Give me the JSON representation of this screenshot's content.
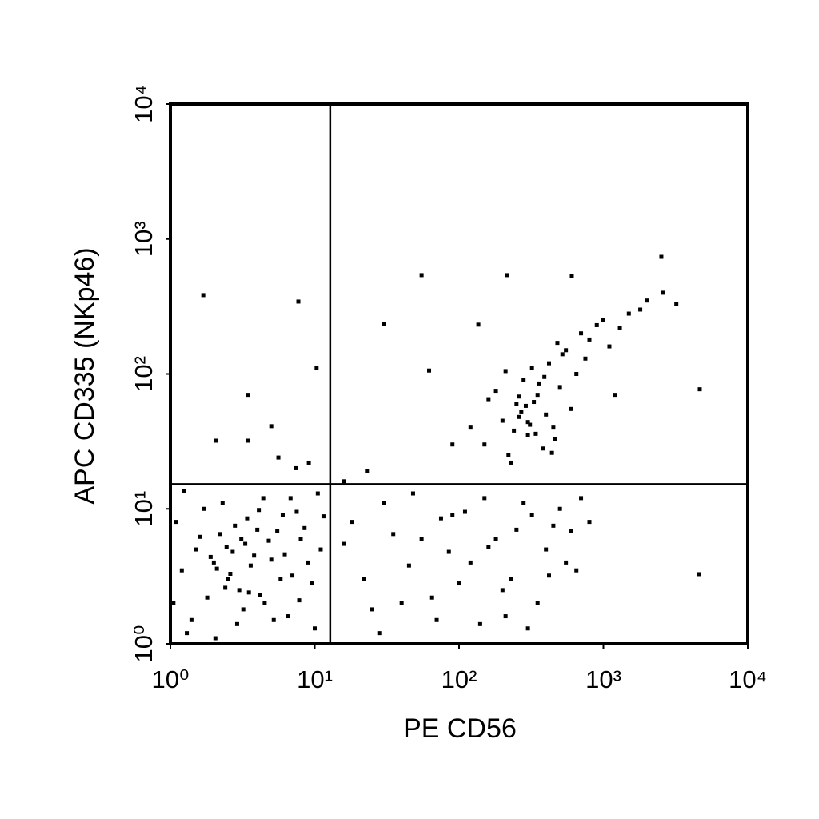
{
  "chart_data": {
    "type": "scatter",
    "x_label": "PE CD56",
    "y_label": "APC CD335 (NKp46)",
    "xscale": "log",
    "yscale": "log",
    "xlim": [
      1,
      10000
    ],
    "ylim": [
      1,
      10000
    ],
    "xticks": [
      {
        "value": 1,
        "label": "10⁰"
      },
      {
        "value": 10,
        "label": "10¹"
      },
      {
        "value": 100,
        "label": "10²"
      },
      {
        "value": 1000,
        "label": "10³"
      },
      {
        "value": 10000,
        "label": "10⁴"
      }
    ],
    "yticks": [
      {
        "value": 1,
        "label": "10⁰"
      },
      {
        "value": 10,
        "label": "10¹"
      },
      {
        "value": 100,
        "label": "10²"
      },
      {
        "value": 1000,
        "label": "10³"
      },
      {
        "value": 10000,
        "label": "10⁴"
      }
    ],
    "gates": {
      "x": 12.8,
      "y": 15.3
    },
    "color": "#000000",
    "x": [
      1.2,
      1.5,
      1.8,
      2.0,
      2.2,
      2.5,
      2.7,
      3.0,
      3.3,
      3.6,
      4.0,
      4.5,
      5.0,
      6.0,
      7.0,
      8.0,
      9.5,
      11,
      1.1,
      1.4,
      1.7,
      2.1,
      2.4,
      2.8,
      3.2,
      3.8,
      4.4,
      5.5,
      6.5,
      7.5,
      9,
      10.5,
      1.3,
      1.6,
      1.9,
      2.3,
      2.6,
      2.9,
      3.4,
      4.2,
      4.8,
      5.8,
      6.8,
      8.5,
      10,
      1.05,
      1.25,
      2.05,
      2.45,
      3.1,
      3.5,
      4.1,
      5.2,
      6.2,
      7.8,
      11.5,
      18,
      22,
      30,
      40,
      55,
      70,
      90,
      120,
      150,
      200,
      250,
      300,
      400,
      500,
      650,
      800,
      25,
      35,
      48,
      65,
      85,
      110,
      140,
      180,
      230,
      280,
      350,
      450,
      550,
      700,
      16,
      28,
      45,
      75,
      100,
      160,
      210,
      320,
      420,
      600,
      150,
      200,
      250,
      300,
      350,
      400,
      450,
      500,
      600,
      220,
      280,
      320,
      380,
      260,
      240,
      330,
      420,
      180,
      550,
      700,
      800,
      1000,
      1300,
      1800,
      120,
      90,
      160,
      270,
      310,
      360,
      460,
      520,
      650,
      230,
      290,
      340,
      390,
      440,
      210,
      260,
      300,
      480,
      750,
      900,
      1100,
      1500,
      2000,
      2600,
      3200,
      1200,
      1.69,
      7.7,
      10.3,
      3.45,
      5.0,
      2.07,
      3.45,
      5.6,
      9.1,
      7.4,
      55,
      215,
      604,
      2520,
      30,
      136,
      62,
      4650,
      4600,
      23,
      16
    ],
    "values": [
      3.5,
      5.0,
      2.2,
      4.0,
      6.5,
      3.0,
      4.8,
      2.5,
      5.5,
      3.8,
      7.0,
      2.0,
      4.2,
      9.0,
      3.2,
      6.0,
      2.8,
      5.0,
      8.0,
      1.5,
      10,
      3.6,
      2.6,
      7.5,
      1.8,
      4.5,
      12,
      6.8,
      1.6,
      9.5,
      4.0,
      13,
      1.2,
      6.2,
      4.4,
      11,
      3.3,
      1.4,
      8.5,
      2.3,
      5.8,
      3.0,
      12,
      7.2,
      1.3,
      2.0,
      13.5,
      1.1,
      5.2,
      6.0,
      2.4,
      9.8,
      1.5,
      4.6,
      2.1,
      8.8,
      8,
      3,
      11,
      2,
      6,
      1.5,
      9,
      4,
      12,
      2.5,
      7,
      1.3,
      5,
      10,
      3.5,
      8,
      1.8,
      6.5,
      13,
      2.2,
      4.8,
      9.5,
      1.4,
      6,
      3,
      11,
      2,
      7.5,
      4,
      12,
      5.5,
      1.2,
      3.8,
      8.5,
      2.8,
      5.2,
      1.6,
      9,
      3.2,
      6.8,
      30,
      45,
      60,
      35,
      70,
      50,
      40,
      80,
      55,
      25,
      90,
      110,
      28,
      48,
      38,
      62,
      120,
      75,
      150,
      200,
      180,
      250,
      220,
      300,
      40,
      30,
      65,
      52,
      42,
      85,
      33,
      140,
      100,
      22,
      58,
      36,
      95,
      26,
      105,
      68,
      44,
      170,
      130,
      230,
      160,
      280,
      350,
      400,
      330,
      70,
      384,
      344,
      111,
      70,
      41,
      32,
      32,
      24,
      22,
      20,
      540,
      540,
      532,
      738,
      234,
      232,
      106,
      77,
      3.28,
      19,
      16
    ]
  }
}
